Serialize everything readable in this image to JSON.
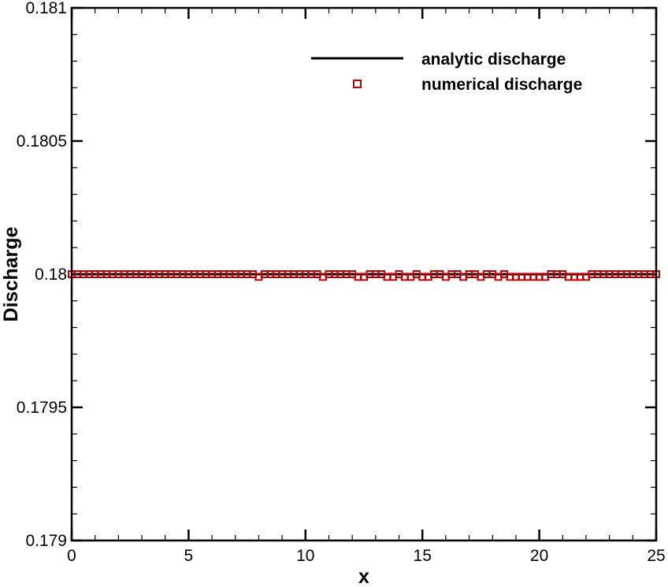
{
  "chart_data": {
    "type": "scatter",
    "xlabel": "x",
    "ylabel": "Discharge",
    "xlim": [
      0,
      25
    ],
    "ylim": [
      0.179,
      0.181
    ],
    "x_ticks": [
      {
        "value": 0,
        "label": "0"
      },
      {
        "value": 5,
        "label": "5"
      },
      {
        "value": 10,
        "label": "10"
      },
      {
        "value": 15,
        "label": "15"
      },
      {
        "value": 20,
        "label": "20"
      },
      {
        "value": 25,
        "label": "25"
      }
    ],
    "y_ticks": [
      {
        "value": 0.179,
        "label": "0.179"
      },
      {
        "value": 0.1795,
        "label": "0.1795"
      },
      {
        "value": 0.18,
        "label": "0.18"
      },
      {
        "value": 0.1805,
        "label": "0.1805"
      },
      {
        "value": 0.181,
        "label": "0.181"
      }
    ],
    "x_minor_step": 1,
    "y_minor_step": 0.0001,
    "grid": false,
    "legend_position": "top-right",
    "series": [
      {
        "name": "analytic discharge",
        "kind": "line",
        "color": "#000000",
        "x": [
          0,
          25
        ],
        "y": [
          0.18,
          0.18
        ]
      },
      {
        "name": "numerical discharge",
        "kind": "markers",
        "marker": "square",
        "color": "#c00000",
        "x_start": 0,
        "x_step": 0.25,
        "y": [
          0.18,
          0.18,
          0.18,
          0.18,
          0.18,
          0.18,
          0.18,
          0.18,
          0.18,
          0.18,
          0.18,
          0.18,
          0.18,
          0.18,
          0.18,
          0.18,
          0.18,
          0.18,
          0.18,
          0.18,
          0.18,
          0.18,
          0.18,
          0.18,
          0.18,
          0.18,
          0.18,
          0.18,
          0.18,
          0.18,
          0.18,
          0.18,
          0.17999,
          0.18,
          0.18,
          0.18,
          0.18,
          0.18,
          0.18,
          0.18,
          0.18,
          0.18,
          0.18,
          0.17999,
          0.18,
          0.18,
          0.18,
          0.18,
          0.18,
          0.17999,
          0.17999,
          0.18,
          0.18,
          0.18,
          0.17999,
          0.17999,
          0.18,
          0.17999,
          0.17999,
          0.18,
          0.17999,
          0.17999,
          0.18,
          0.18,
          0.17999,
          0.18,
          0.18,
          0.17999,
          0.18,
          0.18,
          0.17999,
          0.18,
          0.18,
          0.17999,
          0.18,
          0.17999,
          0.17999,
          0.17999,
          0.17999,
          0.17999,
          0.17999,
          0.17999,
          0.18,
          0.18,
          0.18,
          0.17999,
          0.17999,
          0.17999,
          0.17999,
          0.18,
          0.18,
          0.18,
          0.18,
          0.18,
          0.18,
          0.18,
          0.18,
          0.18,
          0.18,
          0.18,
          0.18
        ]
      }
    ]
  }
}
